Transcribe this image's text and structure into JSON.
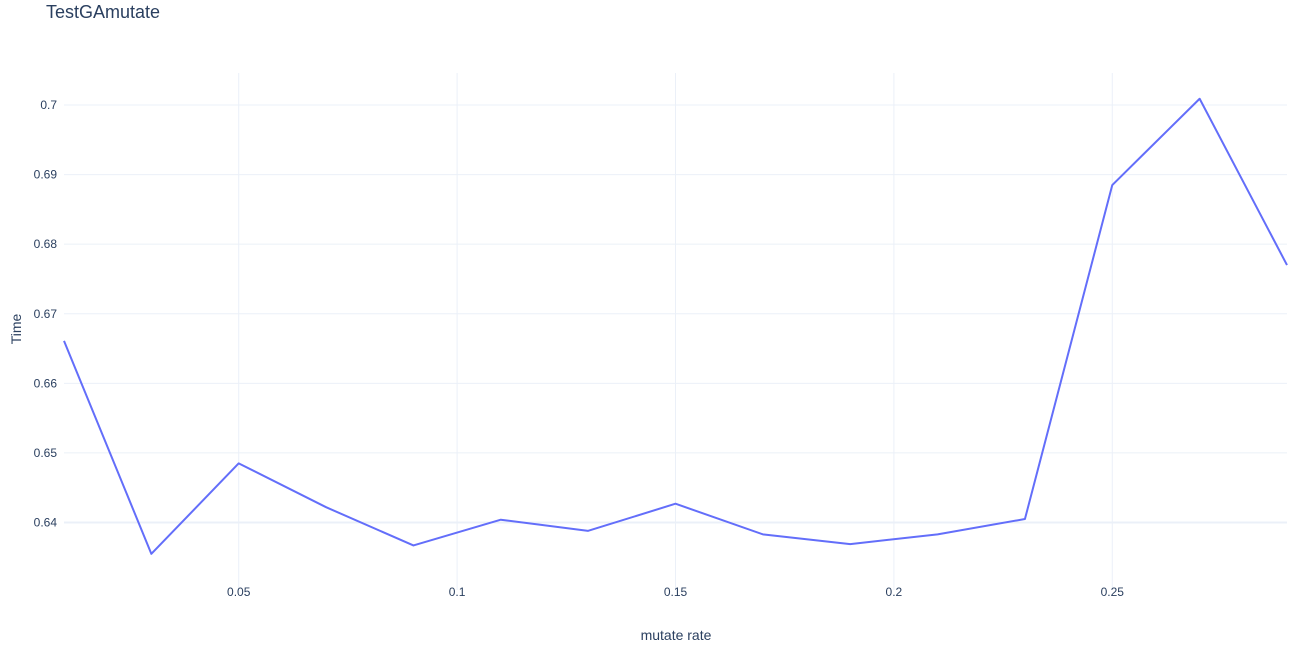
{
  "chart_data": {
    "type": "line",
    "title": "TestGAmutate",
    "xlabel": "mutate rate",
    "ylabel": "Time",
    "xlim": [
      0.01,
      0.29
    ],
    "ylim": [
      0.6303,
      0.7046
    ],
    "xticks": [
      0.05,
      0.1,
      0.15,
      0.2,
      0.25
    ],
    "xtick_labels": [
      "0.05",
      "0.1",
      "0.15",
      "0.2",
      "0.25"
    ],
    "yticks": [
      0.64,
      0.65,
      0.66,
      0.67,
      0.68,
      0.69,
      0.7
    ],
    "ytick_labels": [
      "0.64",
      "0.65",
      "0.66",
      "0.67",
      "0.68",
      "0.69",
      "0.7"
    ],
    "grid": true,
    "series": [
      {
        "color": "#636efa",
        "x": [
          0.01,
          0.03,
          0.05,
          0.07,
          0.09,
          0.11,
          0.13,
          0.15,
          0.17,
          0.19,
          0.21,
          0.23,
          0.25,
          0.27,
          0.29
        ],
        "y": [
          0.6661,
          0.6355,
          0.6485,
          0.6422,
          0.6367,
          0.6404,
          0.6388,
          0.6427,
          0.6383,
          0.6369,
          0.6383,
          0.6405,
          0.6885,
          0.7009,
          0.677
        ]
      }
    ]
  }
}
